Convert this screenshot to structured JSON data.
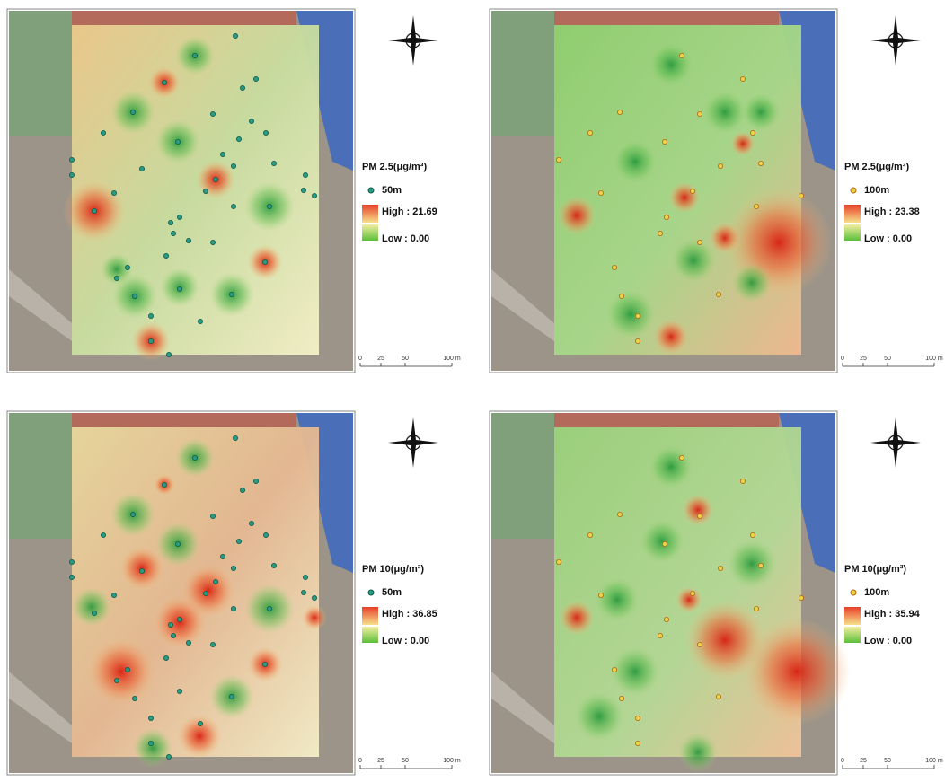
{
  "panels": [
    {
      "legend_title": "PM 2.5(μg/m³)",
      "sensor": "50m",
      "high": "High : 21.69",
      "low": "Low : 0.00",
      "scale": [
        "0",
        "25",
        "50",
        "100 m"
      ]
    },
    {
      "legend_title": "PM 2.5(μg/m³)",
      "sensor": "100m",
      "high": "High : 23.38",
      "low": "Low : 0.00",
      "scale": [
        "0",
        "25",
        "50",
        "100 m"
      ]
    },
    {
      "legend_title": "PM 10(μg/m³)",
      "sensor": "50m",
      "high": "High : 36.85",
      "low": "Low : 0.00",
      "scale": [
        "0",
        "25",
        "50",
        "100 m"
      ]
    },
    {
      "legend_title": "PM 10(μg/m³)",
      "sensor": "100m",
      "high": "High : 35.94",
      "low": "Low : 0.00",
      "scale": [
        "0",
        "25",
        "50",
        "100 m"
      ]
    }
  ]
}
